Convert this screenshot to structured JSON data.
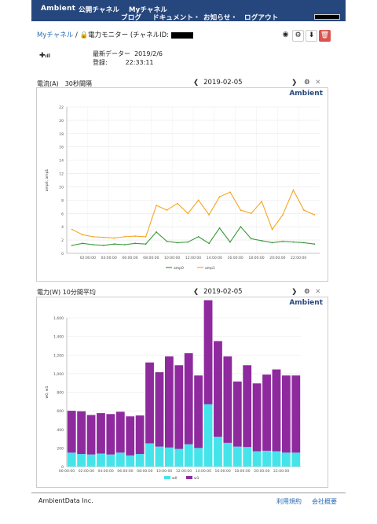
{
  "nav": {
    "brand": "Ambient",
    "public_channels": "公開チャネル",
    "my_channels": "Myチャネル",
    "blog": "ブログ",
    "docs": "ドキュメント・",
    "news": "お知らせ・",
    "logout": "ログアウト"
  },
  "crumb": {
    "my": "Myチャネル",
    "sep": "/",
    "title": "電力モニター (チャネルID:"
  },
  "info": {
    "latest_label": "最新データー",
    "latest_date": "2019/2/6",
    "reg_label": "登録:",
    "reg_time": "22:33:11"
  },
  "panel1": {
    "title": "電流(A)　30秒間隔",
    "date": "2019-02-05",
    "brand": "Ambient"
  },
  "panel2": {
    "title": "電力(W) 10分間平均",
    "date": "2019-02-05",
    "brand": "Ambient"
  },
  "icons": {
    "eye": "eye-icon",
    "gear": "gear-icon",
    "download": "download-icon",
    "trash": "trash-icon",
    "close": "close-icon"
  },
  "colors": {
    "nav": "#26477d",
    "amp0": "#3a9a3a",
    "amp1": "#f5a623",
    "w0": "#45e4ea",
    "w1": "#8e2a9e"
  },
  "chart_data": [
    {
      "type": "line",
      "ylabel": "amp0, amp1",
      "ylim": [
        0,
        22
      ],
      "yticks": [
        0,
        2,
        4,
        6,
        8,
        10,
        12,
        14,
        16,
        18,
        20,
        22
      ],
      "x": [
        "00:00",
        "01:00",
        "02:00",
        "03:00",
        "04:00",
        "05:00",
        "06:00",
        "07:00",
        "08:00",
        "09:00",
        "10:00",
        "11:00",
        "12:00",
        "13:00",
        "14:00",
        "15:00",
        "16:00",
        "17:00",
        "18:00",
        "19:00",
        "20:00",
        "21:00",
        "22:00",
        "23:00"
      ],
      "xticks": [
        "02:00:00",
        "04:00:00",
        "06:00:00",
        "08:00:00",
        "10:00:00",
        "12:00:00",
        "14:00:00",
        "16:00:00",
        "18:00:00",
        "20:00:00",
        "22:00:00"
      ],
      "series": [
        {
          "name": "amp0",
          "values": [
            1.2,
            1.5,
            1.3,
            1.2,
            1.4,
            1.3,
            1.5,
            1.4,
            3.2,
            1.8,
            1.6,
            1.7,
            2.5,
            1.5,
            3.8,
            1.7,
            4.0,
            2.2,
            1.9,
            1.6,
            1.8,
            1.7,
            1.6,
            1.4
          ]
        },
        {
          "name": "amp1",
          "values": [
            3.6,
            2.8,
            2.5,
            2.4,
            2.3,
            2.5,
            2.6,
            2.5,
            7.2,
            6.5,
            7.5,
            6.0,
            8.0,
            5.8,
            8.5,
            9.2,
            6.5,
            6.0,
            7.8,
            3.6,
            5.8,
            9.5,
            6.5,
            5.8
          ]
        }
      ]
    },
    {
      "type": "bar",
      "ylabel": "w0, w1",
      "ylim": [
        0,
        1600
      ],
      "yticks": [
        0,
        200,
        400,
        600,
        800,
        1000,
        1200,
        1400,
        1600
      ],
      "x": [
        "00:00",
        "01:00",
        "02:00",
        "03:00",
        "04:00",
        "05:00",
        "06:00",
        "07:00",
        "08:00",
        "09:00",
        "10:00",
        "11:00",
        "12:00",
        "13:00",
        "14:00",
        "15:00",
        "16:00",
        "17:00",
        "18:00",
        "19:00",
        "20:00",
        "21:00",
        "22:00",
        "23:00"
      ],
      "xticks": [
        "00:00:00",
        "02:00:00",
        "04:00:00",
        "06:00:00",
        "08:00:00",
        "10:00:00",
        "12:00:00",
        "14:00:00",
        "16:00:00",
        "18:00:00",
        "20:00:00",
        "22:00:00"
      ],
      "series": [
        {
          "name": "w0",
          "values": [
            150,
            135,
            130,
            140,
            130,
            150,
            120,
            135,
            250,
            215,
            205,
            190,
            240,
            200,
            670,
            320,
            255,
            215,
            210,
            165,
            170,
            165,
            150,
            150
          ]
        },
        {
          "name": "w1",
          "values": [
            450,
            460,
            425,
            435,
            435,
            440,
            420,
            415,
            870,
            800,
            980,
            900,
            980,
            780,
            1120,
            1030,
            930,
            700,
            880,
            730,
            820,
            880,
            830,
            830
          ]
        }
      ]
    }
  ],
  "footer": {
    "company": "AmbientData Inc.",
    "terms": "利用規約",
    "about": "会社概要"
  }
}
